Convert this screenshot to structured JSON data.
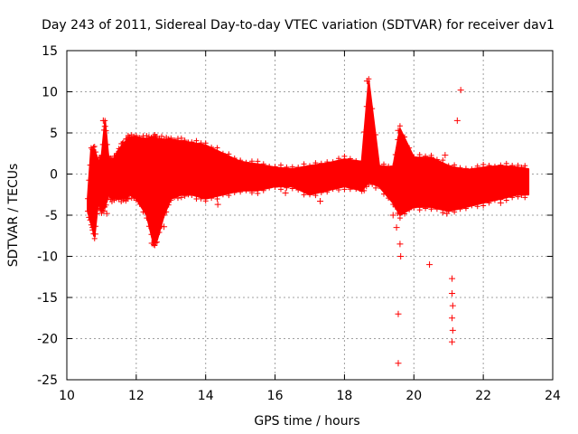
{
  "chart_data": {
    "type": "scatter",
    "title": "Day 243 of 2011, Sidereal Day-to-day VTEC variation (SDTVAR) for receiver dav1",
    "xlabel": "GPS time / hours",
    "ylabel": "SDTVAR / TECUs",
    "xlim": [
      10,
      24
    ],
    "ylim": [
      -25,
      15
    ],
    "xticks": [
      10,
      12,
      14,
      16,
      18,
      20,
      22,
      24
    ],
    "yticks": [
      -25,
      -20,
      -15,
      -10,
      -5,
      0,
      5,
      10,
      15
    ],
    "grid": true,
    "legend": "none",
    "marker": "+",
    "series": [
      {
        "name": "SDTVAR",
        "color": "#ff0000",
        "dense_band": {
          "x": [
            10.6,
            10.7,
            10.8,
            10.9,
            11.0,
            11.1,
            11.2,
            11.3,
            11.5,
            11.7,
            11.8,
            12.0,
            12.3,
            12.5,
            12.6,
            12.8,
            13.0,
            13.3,
            13.6,
            14.0,
            14.5,
            15.0,
            15.5,
            16.0,
            16.5,
            17.0,
            17.5,
            18.0,
            18.5,
            18.7,
            19.0,
            19.4,
            19.6,
            20.0,
            20.5,
            21.0,
            21.5,
            22.0,
            22.5,
            23.0,
            23.3
          ],
          "upper": [
            -3.0,
            3.0,
            3.0,
            1.5,
            2.0,
            6.5,
            2.0,
            1.5,
            3.0,
            4.0,
            4.5,
            4.5,
            4.3,
            4.5,
            4.3,
            4.2,
            4.2,
            4.0,
            3.8,
            3.5,
            2.5,
            1.5,
            1.2,
            0.8,
            0.6,
            1.0,
            1.3,
            1.8,
            1.5,
            11.3,
            1.0,
            0.8,
            5.5,
            2.0,
            2.0,
            1.0,
            0.5,
            0.8,
            1.0,
            0.8,
            0.6
          ],
          "lower": [
            -4.5,
            -6.0,
            -7.5,
            -3.5,
            -4.5,
            -4.0,
            -2.5,
            -3.0,
            -3.0,
            -3.0,
            -2.5,
            -3.0,
            -5.0,
            -8.5,
            -8.0,
            -5.0,
            -3.0,
            -2.5,
            -2.5,
            -3.0,
            -2.5,
            -2.0,
            -2.0,
            -1.5,
            -1.5,
            -2.5,
            -2.0,
            -1.5,
            -2.0,
            -1.0,
            -1.5,
            -3.5,
            -5.0,
            -4.0,
            -4.0,
            -4.5,
            -4.0,
            -3.5,
            -3.0,
            -2.5,
            -2.5
          ]
        },
        "points": [
          {
            "x": 10.72,
            "y": -3.5
          },
          {
            "x": 10.75,
            "y": -6.8
          },
          {
            "x": 10.82,
            "y": -7.3
          },
          {
            "x": 10.85,
            "y": 1.5
          },
          {
            "x": 11.05,
            "y": 6.5
          },
          {
            "x": 11.1,
            "y": 5.8
          },
          {
            "x": 11.15,
            "y": -4.8
          },
          {
            "x": 11.6,
            "y": 3.7
          },
          {
            "x": 12.45,
            "y": -8.4
          },
          {
            "x": 12.6,
            "y": -7.2
          },
          {
            "x": 12.8,
            "y": -6.4
          },
          {
            "x": 15.0,
            "y": 1.5
          },
          {
            "x": 14.35,
            "y": -3.7
          },
          {
            "x": 16.3,
            "y": -2.3
          },
          {
            "x": 17.3,
            "y": -3.3
          },
          {
            "x": 18.65,
            "y": 11.3
          },
          {
            "x": 18.7,
            "y": 8.0
          },
          {
            "x": 18.75,
            "y": 5.5
          },
          {
            "x": 19.55,
            "y": 5.3
          },
          {
            "x": 19.4,
            "y": -5.0
          },
          {
            "x": 19.5,
            "y": -6.5
          },
          {
            "x": 19.6,
            "y": -8.5
          },
          {
            "x": 19.62,
            "y": -10.0
          },
          {
            "x": 19.55,
            "y": -17.0
          },
          {
            "x": 19.55,
            "y": -23.0
          },
          {
            "x": 20.3,
            "y": 1.7
          },
          {
            "x": 20.5,
            "y": 2.0
          },
          {
            "x": 20.45,
            "y": -11.0
          },
          {
            "x": 20.9,
            "y": 2.3
          },
          {
            "x": 20.95,
            "y": -4.8
          },
          {
            "x": 21.1,
            "y": -12.7
          },
          {
            "x": 21.1,
            "y": -14.5
          },
          {
            "x": 21.12,
            "y": -16.0
          },
          {
            "x": 21.1,
            "y": -17.5
          },
          {
            "x": 21.12,
            "y": -19.0
          },
          {
            "x": 21.1,
            "y": -20.4
          },
          {
            "x": 21.25,
            "y": 6.5
          },
          {
            "x": 21.35,
            "y": 10.2
          },
          {
            "x": 21.5,
            "y": -4.0
          },
          {
            "x": 22.5,
            "y": -3.5
          },
          {
            "x": 22.9,
            "y": 0.7
          },
          {
            "x": 23.2,
            "y": 0.6
          }
        ]
      }
    ]
  }
}
